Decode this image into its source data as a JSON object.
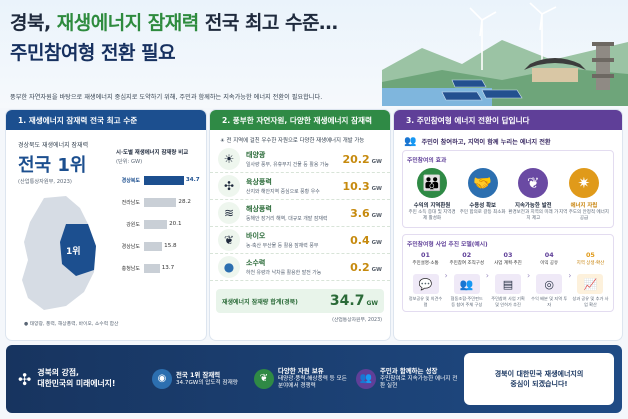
{
  "header": {
    "title_a": "경북, ",
    "title_b": "재생에너지 잠재력",
    "title_c": " 전국 최고 수준…",
    "subtitle": "주민참여형 전환 필요",
    "lead": "풍부한 자연자원을 바탕으로 재생에너지 중심지로 도약하기 위해, 주민과 함께하는 지속가능한 에너지 전환이 필요합니다."
  },
  "panel1": {
    "heading": "1. 재생에너지 잠재력 전국 최고 수준",
    "region": "경상북도",
    "rank_label": "재생에너지 잠재력",
    "rank": "전국 1위",
    "source": "(산업통상자원부, 2023)",
    "map_badge": "1위",
    "chart_title": "시·도별 재생에너지 잠재량 비교",
    "chart_unit": "(단위: GW)",
    "chart_note": "● 태양광, 풍력, 해상풍력, 바이오, 소수력 합산"
  },
  "chart_data": {
    "type": "bar",
    "title": "시·도별 재생에너지 잠재량 비교",
    "unit": "GW",
    "categories": [
      "경상북도",
      "전라남도",
      "강원도",
      "경상남도",
      "충청남도"
    ],
    "values": [
      34.7,
      28.2,
      20.1,
      15.8,
      13.7
    ],
    "xlim": [
      0,
      40
    ],
    "highlight_color": "#1c4f8f",
    "base_color": "#c9cfd6"
  },
  "panel2": {
    "heading": "2. 풍부한 자연자원, 다양한 재생에너지 잠재력",
    "intro": "전 지역에 걸친 우수한 자원으로 다양한 재생에너지 개발 가능",
    "sources": [
      {
        "name": "태양광",
        "desc": "일사량 풍부, 유휴부지 건물 등 활용 가능",
        "value": "20.2",
        "unit": "GW",
        "icon": "sun-icon"
      },
      {
        "name": "육상풍력",
        "desc": "산지와 해안지역 중심으로 풍황 우수",
        "value": "10.3",
        "unit": "GW",
        "icon": "wind-turbine-icon"
      },
      {
        "name": "해상풍력",
        "desc": "동해안 장거리 해역, 대규모 개발 잠재력",
        "value": "3.6",
        "unit": "GW",
        "icon": "offshore-wind-icon"
      },
      {
        "name": "바이오",
        "desc": "농·축산 부산물 등 활용 잠재력 풍부",
        "value": "0.4",
        "unit": "GW",
        "icon": "leaf-icon"
      },
      {
        "name": "소수력",
        "desc": "하천 유량과 낙차를 활용한 발전 가능",
        "value": "0.2",
        "unit": "GW",
        "icon": "water-drop-icon"
      }
    ],
    "total_label": "재생에너지 잠재량 합계(경북)",
    "total_value": "34.7",
    "total_unit": "GW",
    "source": "(산업통상자원부, 2023)"
  },
  "panel3": {
    "heading": "3. 주민참여형 에너지 전환이 답입니다",
    "intro": "주민이 참여하고, 지역이 함께 누리는 에너지 전환",
    "effects_title": "주민참여의 효과",
    "effects": [
      {
        "name": "수익의 지역환원",
        "desc": "주민 소득 증대 및 지역경제 활성화",
        "icon": "people-icon",
        "color": "#2f8a45"
      },
      {
        "name": "수용성 확보",
        "desc": "주민 합의로 갈등 최소화",
        "icon": "handshake-icon",
        "color": "#2c6fb0"
      },
      {
        "name": "지속가능한 발전",
        "desc": "환경보전과 지역의 미래 가치 제고",
        "icon": "sprout-icon",
        "color": "#6a4aa3"
      },
      {
        "name": "에너지 자립",
        "desc": "지역 주도의 안정적 에너지 공급",
        "icon": "bulb-icon",
        "color": "#e09a1a"
      }
    ],
    "model_title": "주민참여형 사업 추진 모델(예시)",
    "steps": [
      {
        "num": "01",
        "label": "주민설명·소통",
        "desc": "정보공유 및 의견수렴",
        "icon": "meeting-icon"
      },
      {
        "num": "02",
        "label": "주민참여 조직구성",
        "desc": "협동조합·주민펀드 등 참여 주체 구성",
        "icon": "group-icon"
      },
      {
        "num": "03",
        "label": "사업 계획·추진",
        "desc": "주민참여 사업 기획 및 인허가 추진",
        "icon": "plan-icon"
      },
      {
        "num": "04",
        "label": "이익 공유",
        "desc": "수익 배분 및 지역 투자",
        "icon": "coins-icon"
      },
      {
        "num": "05",
        "label": "지역 상생·확산",
        "desc": "성과 공유 및 추가 사업 확산",
        "icon": "growth-icon"
      }
    ]
  },
  "footer": {
    "slogan_a": "경북의 강점,",
    "slogan_b": "대한민국의 미래에너지!",
    "items": [
      {
        "title": "전국 1위 잠재력",
        "desc": "34.7GW의 압도적 잠재량",
        "icon": "location-pin-icon"
      },
      {
        "title": "다양한 자원 보유",
        "desc": "태양광·풍력·해상풍력 등 모든 분야에서 경쟁력",
        "icon": "leaf-icon"
      },
      {
        "title": "주민과 함께하는 성장",
        "desc": "주민참여로 지속가능한 에너지 전환 실현",
        "icon": "people-icon"
      }
    ],
    "closing_a": "경북이 대한민국 재생에너지의",
    "closing_b": "중심이 되겠습니다!"
  }
}
